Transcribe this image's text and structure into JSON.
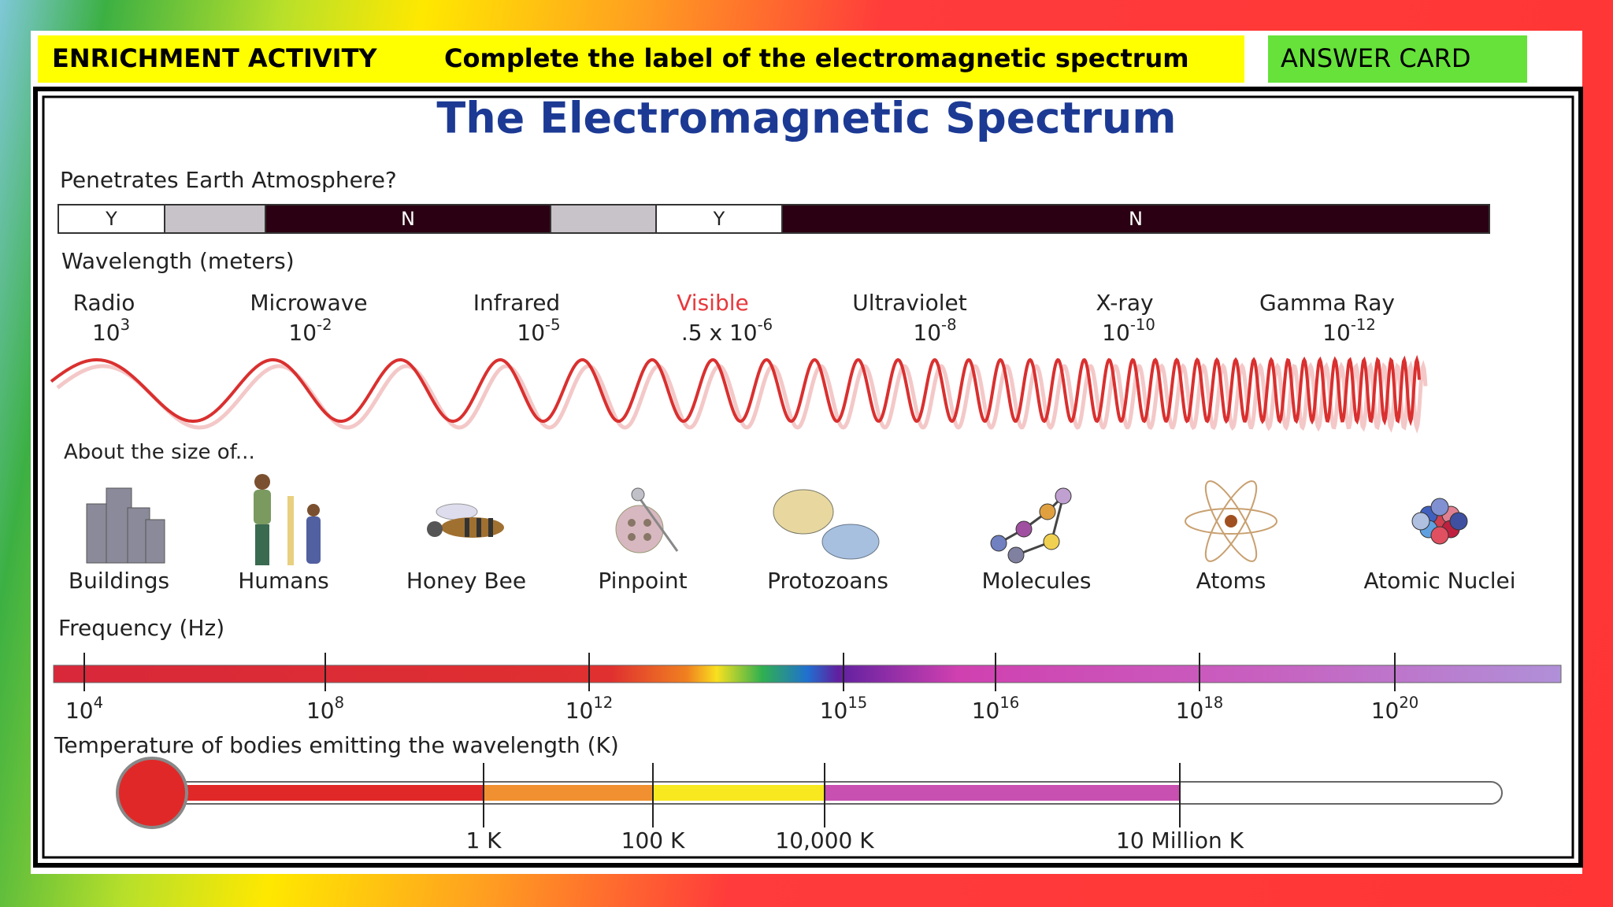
{
  "header": {
    "activity": "ENRICHMENT ACTIVITY",
    "instruction": "Complete the label of the electromagnetic spectrum",
    "answer_card": "ANSWER CARD"
  },
  "diagram": {
    "title": "The Electromagnetic Spectrum",
    "atmosphere": {
      "label": "Penetrates Earth Atmosphere?",
      "segments": [
        "Y",
        "N",
        "Y",
        "N"
      ]
    },
    "wavelength": {
      "label": "Wavelength (meters)",
      "bands": [
        {
          "name": "Radio",
          "base": "10",
          "exp": "3"
        },
        {
          "name": "Microwave",
          "base": "10",
          "exp": "-2"
        },
        {
          "name": "Infrared",
          "base": "10",
          "exp": "-5"
        },
        {
          "name": "Visible",
          "base": ".5 x 10",
          "exp": "-6"
        },
        {
          "name": "Ultraviolet",
          "base": "10",
          "exp": "-8"
        },
        {
          "name": "X-ray",
          "base": "10",
          "exp": "-10"
        },
        {
          "name": "Gamma Ray",
          "base": "10",
          "exp": "-12"
        }
      ]
    },
    "sizes": {
      "label": "About the size of...",
      "items": [
        "Buildings",
        "Humans",
        "Honey Bee",
        "Pinpoint",
        "Protozoans",
        "Molecules",
        "Atoms",
        "Atomic Nuclei"
      ]
    },
    "frequency": {
      "label": "Frequency (Hz)",
      "ticks": [
        {
          "base": "10",
          "exp": "4"
        },
        {
          "base": "10",
          "exp": "8"
        },
        {
          "base": "10",
          "exp": "12"
        },
        {
          "base": "10",
          "exp": "15"
        },
        {
          "base": "10",
          "exp": "16"
        },
        {
          "base": "10",
          "exp": "18"
        },
        {
          "base": "10",
          "exp": "20"
        }
      ]
    },
    "temperature": {
      "label": "Temperature of bodies emitting the wavelength (K)",
      "ticks": [
        "1 K",
        "100 K",
        "10,000 K",
        "10 Million K"
      ]
    }
  }
}
